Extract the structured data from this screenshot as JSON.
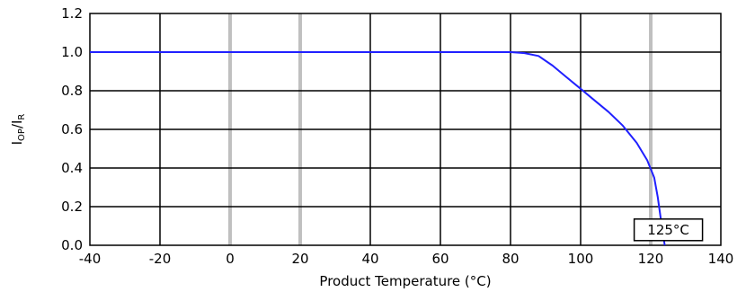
{
  "chart_data": {
    "type": "line",
    "xlabel": "Product Temperature (°C)",
    "ylabel_main": "I",
    "ylabel_sub1": "OP",
    "ylabel_mid": "/I",
    "ylabel_sub2": "R",
    "xlim": [
      -40,
      140
    ],
    "ylim": [
      0,
      1.2
    ],
    "x_ticks": [
      -40,
      -20,
      0,
      20,
      40,
      60,
      80,
      100,
      120,
      140
    ],
    "x_tick_labels": [
      "-40",
      "-20",
      "0",
      "20",
      "40",
      "60",
      "80",
      "100",
      "120",
      "140"
    ],
    "y_ticks": [
      0,
      0.2,
      0.4,
      0.6,
      0.8,
      1.0,
      1.2
    ],
    "y_tick_labels": [
      "0.0",
      "0.2",
      "0.4",
      "0.6",
      "0.8",
      "1.0",
      "1.2"
    ],
    "grid": true,
    "grid_colors": {
      "dark": "#000000",
      "light": "#c0c0c0"
    },
    "light_grid_x": [
      0,
      20,
      120
    ],
    "line_color": "#2020ff",
    "series": [
      {
        "x": [
          -40,
          80,
          84,
          88,
          92,
          96,
          100,
          104,
          108,
          112,
          116,
          119,
          121,
          122,
          123,
          124
        ],
        "values": [
          1.0,
          1.0,
          0.995,
          0.98,
          0.93,
          0.87,
          0.81,
          0.75,
          0.69,
          0.62,
          0.53,
          0.44,
          0.35,
          0.25,
          0.12,
          0.0
        ]
      }
    ],
    "annotation": {
      "text": "125°C",
      "x": 124,
      "y": 0.08
    }
  }
}
